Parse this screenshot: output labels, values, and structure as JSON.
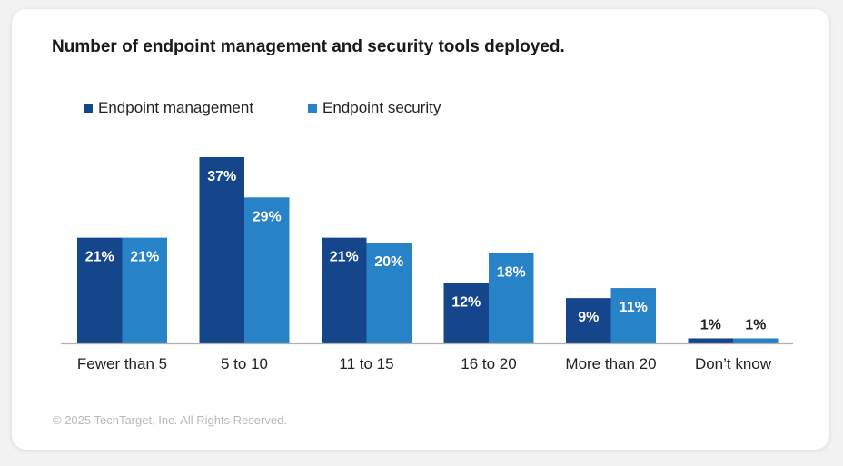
{
  "chart_data": {
    "type": "bar",
    "title": "Number of endpoint management and security tools deployed.",
    "categories": [
      "Fewer than 5",
      "5 to 10",
      "11 to 15",
      "16 to 20",
      "More than 20",
      "Don’t know"
    ],
    "series": [
      {
        "name": "Endpoint management",
        "color": "#15468c",
        "values": [
          21,
          37,
          21,
          12,
          9,
          1
        ],
        "labels": [
          "21%",
          "37%",
          "21%",
          "12%",
          "9%",
          "1%"
        ]
      },
      {
        "name": "Endpoint security",
        "color": "#2782c8",
        "values": [
          21,
          29,
          20,
          18,
          11,
          1
        ],
        "labels": [
          "21%",
          "29%",
          "20%",
          "18%",
          "11%",
          "1%"
        ]
      }
    ],
    "xlabel": "",
    "ylabel": "",
    "ylim": [
      0,
      37
    ],
    "grid": false,
    "legend": "top-left"
  },
  "footer": "© 2025 TechTarget, Inc. All Rights Reserved.",
  "colors": {
    "axis": "#b0b0b0",
    "label_inside": "#ffffff",
    "label_outside": "#222222"
  }
}
